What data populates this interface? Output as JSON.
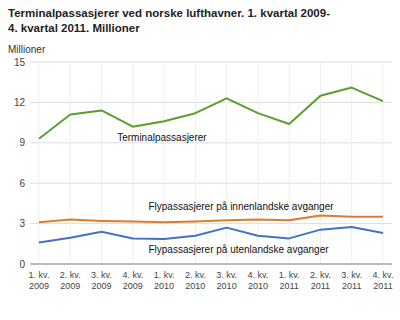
{
  "chart_data": {
    "type": "line",
    "title": "Terminalpassasjerer ved norske lufthavner. 1. kvartal 2009-",
    "subtitle": "4. kvartal 2011. Millioner",
    "y_label": "Millioner",
    "categories": [
      "1. kv.\n2009",
      "2. kv.\n2009",
      "3. kv.\n2009",
      "4. kv.\n2009",
      "1. kv.\n2010",
      "2. kv.\n2010",
      "3. kv.\n2010",
      "4. kv.\n2010",
      "1. kv.\n2011",
      "2. kv.\n2011",
      "3. kv.\n2011",
      "4. kv.\n2011"
    ],
    "series": [
      {
        "name": "Terminalpassasjerer",
        "color": "#5a9e2f",
        "values": [
          9.3,
          11.1,
          11.4,
          10.2,
          10.6,
          11.2,
          12.3,
          11.2,
          10.4,
          12.5,
          13.1,
          12.1
        ]
      },
      {
        "name": "Flypassasjerer på innenlandske avganger",
        "color": "#e07b2a",
        "values": [
          3.1,
          3.3,
          3.2,
          3.15,
          3.1,
          3.15,
          3.25,
          3.3,
          3.25,
          3.6,
          3.5,
          3.5
        ]
      },
      {
        "name": "Flypassasjerer på utenlandske avganger",
        "color": "#4472c4",
        "values": [
          1.6,
          1.95,
          2.4,
          1.9,
          1.85,
          2.1,
          2.7,
          2.1,
          1.9,
          2.55,
          2.75,
          2.3
        ]
      }
    ],
    "ylim": [
      0,
      15
    ],
    "yticks": [
      0,
      3,
      6,
      9,
      12,
      15
    ],
    "grid": true
  }
}
